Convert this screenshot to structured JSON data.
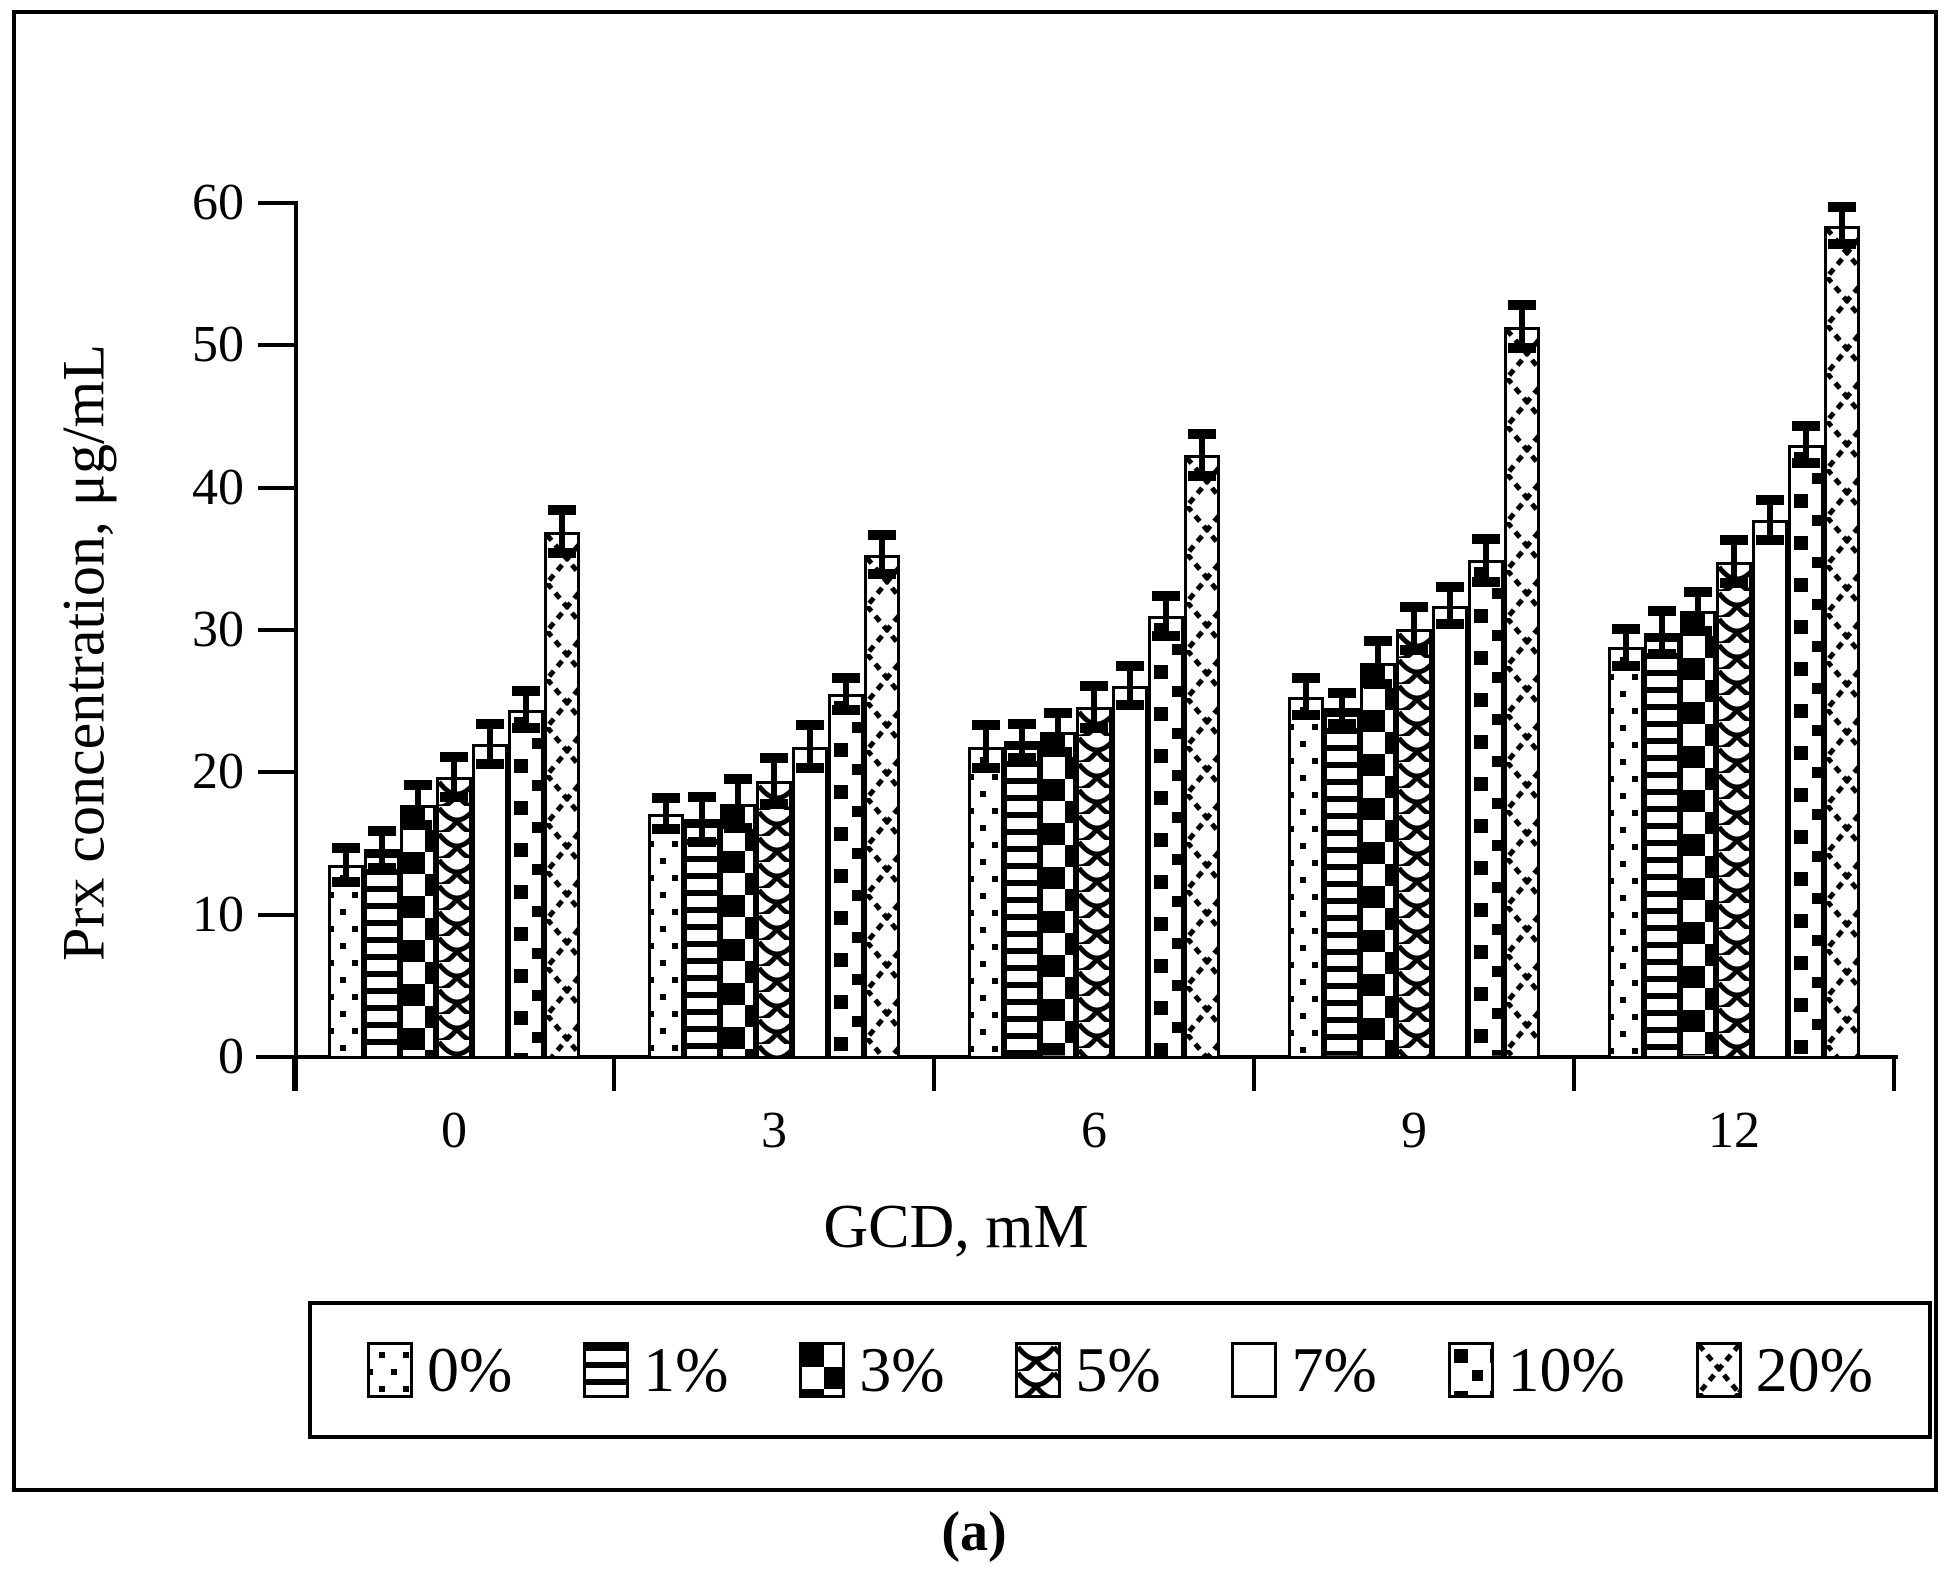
{
  "figure": {
    "caption": "(a)"
  },
  "chart_data": {
    "type": "bar",
    "title": "",
    "xlabel": "GCD, mM",
    "ylabel": "Prx concentration, μg/mL",
    "ylim": [
      0,
      60
    ],
    "yticks": [
      0,
      10,
      20,
      30,
      40,
      50,
      60
    ],
    "categories": [
      "0",
      "3",
      "6",
      "9",
      "12"
    ],
    "grid": false,
    "legend_position": "bottom",
    "error_bars": true,
    "bar_color": "#ffffff",
    "outline_color": "#000000",
    "series": [
      {
        "name": "0%",
        "pattern": "dots",
        "values": [
          13.5,
          17.1,
          21.8,
          25.3,
          28.8
        ],
        "errors": [
          1.2,
          1.1,
          1.5,
          1.3,
          1.3
        ]
      },
      {
        "name": "1%",
        "pattern": "hlines",
        "values": [
          14.6,
          16.7,
          22.2,
          24.5,
          29.8
        ],
        "errors": [
          1.3,
          1.6,
          1.2,
          1.1,
          1.5
        ]
      },
      {
        "name": "3%",
        "pattern": "checker",
        "values": [
          17.7,
          17.8,
          22.8,
          27.7,
          31.3
        ],
        "errors": [
          1.4,
          1.7,
          1.4,
          1.5,
          1.4
        ]
      },
      {
        "name": "5%",
        "pattern": "scales",
        "values": [
          19.7,
          19.4,
          24.6,
          30.1,
          34.8
        ],
        "errors": [
          1.4,
          1.6,
          1.5,
          1.5,
          1.5
        ]
      },
      {
        "name": "7%",
        "pattern": "plain",
        "values": [
          22.0,
          21.8,
          26.1,
          31.7,
          37.7
        ],
        "errors": [
          1.4,
          1.5,
          1.4,
          1.3,
          1.4
        ]
      },
      {
        "name": "10%",
        "pattern": "squares",
        "values": [
          24.4,
          25.5,
          31.0,
          34.9,
          43.0
        ],
        "errors": [
          1.3,
          1.1,
          1.4,
          1.5,
          1.3
        ]
      },
      {
        "name": "20%",
        "pattern": "crosshatch",
        "values": [
          36.9,
          35.3,
          42.3,
          51.3,
          58.4
        ],
        "errors": [
          1.5,
          1.4,
          1.5,
          1.5,
          1.3
        ]
      }
    ]
  }
}
